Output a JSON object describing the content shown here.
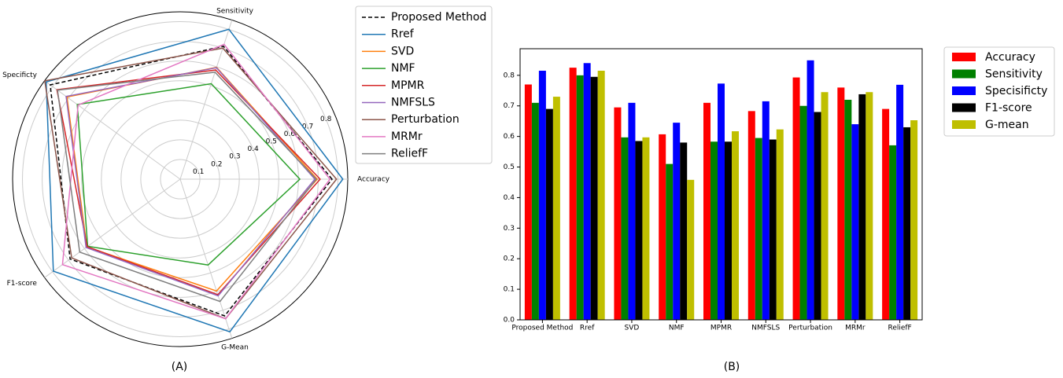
{
  "chart_data": [
    {
      "type": "radar",
      "caption": "(A)",
      "categories": [
        "Accuracy",
        "Sensitivity",
        "Specificty",
        "F1-score",
        "G-Mean"
      ],
      "ylim": [
        0,
        0.85
      ],
      "yticks": [
        0.1,
        0.2,
        0.3,
        0.4,
        0.5,
        0.6,
        0.7,
        0.8
      ],
      "grid": true,
      "legend": "right",
      "series": [
        {
          "name": "Proposed Method",
          "color": "#000000",
          "linestyle": "dashed",
          "values": [
            0.77,
            0.71,
            0.815,
            0.69,
            0.73
          ]
        },
        {
          "name": "Rref",
          "color": "#1f77b4",
          "values": [
            0.825,
            0.8,
            0.84,
            0.795,
            0.815
          ]
        },
        {
          "name": "SVD",
          "color": "#ff7f0e",
          "values": [
            0.695,
            0.597,
            0.71,
            0.585,
            0.597
          ]
        },
        {
          "name": "NMF",
          "color": "#2ca02c",
          "values": [
            0.607,
            0.51,
            0.645,
            0.58,
            0.458
          ]
        },
        {
          "name": "MPMR",
          "color": "#d62728",
          "values": [
            0.71,
            0.583,
            0.773,
            0.583,
            0.617
          ]
        },
        {
          "name": "NMFSLS",
          "color": "#9467bd",
          "values": [
            0.683,
            0.595,
            0.715,
            0.59,
            0.623
          ]
        },
        {
          "name": "Perturbation",
          "color": "#8c564b",
          "values": [
            0.793,
            0.7,
            0.849,
            0.68,
            0.745
          ]
        },
        {
          "name": "MRMr",
          "color": "#e377c2",
          "values": [
            0.76,
            0.72,
            0.64,
            0.738,
            0.745
          ]
        },
        {
          "name": "ReliefF",
          "color": "#7f7f7f",
          "values": [
            0.69,
            0.571,
            0.769,
            0.63,
            0.653
          ]
        }
      ]
    },
    {
      "type": "bar",
      "caption": "(B)",
      "categories": [
        "Proposed Method",
        "Rref",
        "SVD",
        "NMF",
        "MPMR",
        "NMFSLS",
        "Perturbation",
        "MRMr",
        "ReliefF"
      ],
      "ylim": [
        0,
        0.887
      ],
      "yticks": [
        {
          "value": 0,
          "label": "0.0"
        },
        0.1,
        0.2,
        0.3,
        0.4,
        0.5,
        0.6,
        0.7,
        0.8
      ],
      "legend": "right",
      "series": [
        {
          "name": "Accuracy",
          "color": "#ff0000",
          "values": [
            0.77,
            0.825,
            0.695,
            0.607,
            0.71,
            0.683,
            0.793,
            0.76,
            0.69
          ]
        },
        {
          "name": "Sensitivity",
          "color": "#008000",
          "values": [
            0.71,
            0.8,
            0.597,
            0.51,
            0.583,
            0.595,
            0.7,
            0.72,
            0.571
          ]
        },
        {
          "name": "Specisificty",
          "color": "#0000ff",
          "values": [
            0.815,
            0.84,
            0.71,
            0.645,
            0.773,
            0.715,
            0.849,
            0.64,
            0.769
          ]
        },
        {
          "name": "F1-score",
          "color": "#000000",
          "values": [
            0.69,
            0.795,
            0.585,
            0.58,
            0.583,
            0.59,
            0.68,
            0.738,
            0.63
          ]
        },
        {
          "name": "G-mean",
          "color": "#bfbf00",
          "values": [
            0.73,
            0.815,
            0.597,
            0.458,
            0.617,
            0.623,
            0.745,
            0.745,
            0.653
          ]
        }
      ]
    }
  ]
}
